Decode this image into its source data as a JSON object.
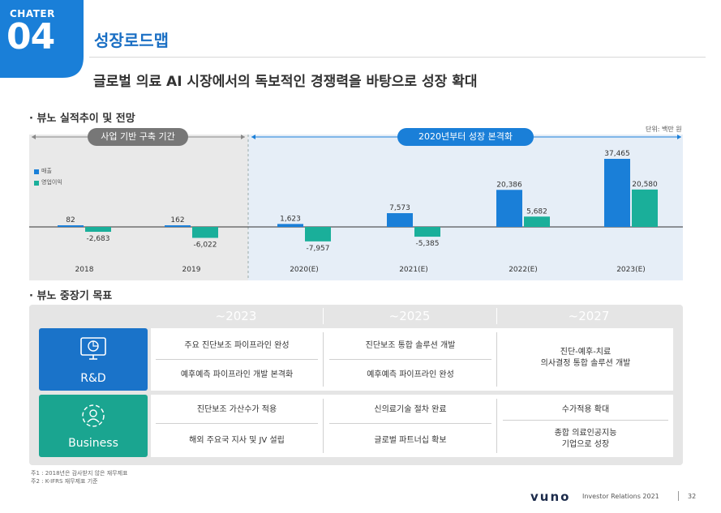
{
  "header": {
    "chapter_label": "CHATER",
    "chapter_number": "04",
    "title": "성장로드맵",
    "subtitle": "글로벌 의료 AI 시장에서의 독보적인 경쟁력을 바탕으로 성장 확대",
    "accent_color": "#1a7fd8"
  },
  "performance": {
    "section_title": "뷰노 실적추이 및 전망",
    "unit": "단위: 백만 원",
    "period_left": "사업 기반 구축 기간",
    "period_right": "2020년부터 성장 본격화"
  },
  "chart_data": {
    "type": "bar",
    "categories": [
      "2018",
      "2019",
      "2020(E)",
      "2021(E)",
      "2022(E)",
      "2023(E)"
    ],
    "series": [
      {
        "name": "매출",
        "color": "#1a7fd8",
        "values": [
          82,
          162,
          1623,
          7573,
          20386,
          37465
        ],
        "labels": [
          "82",
          "162",
          "1,623",
          "7,573",
          "20,386",
          "37,465"
        ]
      },
      {
        "name": "영업이익",
        "color": "#1aaf9a",
        "values": [
          -2683,
          -6022,
          -7957,
          -5385,
          5682,
          20580
        ],
        "labels": [
          "-2,683",
          "-6,022",
          "-7,957",
          "-5,385",
          "5,682",
          "20,580"
        ]
      }
    ],
    "ylim": [
      -9500,
      40000
    ]
  },
  "goals": {
    "section_title": "뷰노 중장기 목표",
    "years": [
      "~2023",
      "~2025",
      "~2027"
    ],
    "rows": [
      {
        "category": "R&D",
        "icon": "monitor-icon",
        "color": "#1a73c9",
        "cells": [
          [
            "주요 진단보조 파이프라인 완성",
            "예후예측 파이프라인 개발 본격화"
          ],
          [
            "진단보조 통합 솔루션 개발",
            "예후예측 파이프라인 완성"
          ],
          [
            "진단-예후-치료",
            "의사결정 통합 솔루션 개발"
          ]
        ]
      },
      {
        "category": "Business",
        "icon": "network-icon",
        "color": "#1aa590",
        "cells": [
          [
            "진단보조 가산수가 적용",
            "해외 주요국 지사 및 JV 설립"
          ],
          [
            "신의료기술 절차 완료",
            "글로벌 파트너십 확보"
          ],
          [
            "수가적용 확대",
            "종합 의료인공지능",
            "기업으로 성장"
          ]
        ]
      }
    ]
  },
  "footnotes": [
    "주1 : 2018년은 감사받지 않은 재무제표",
    "주2 : K-IFRS 재무제표 기준"
  ],
  "footer": {
    "logo": "vuno",
    "label": "Investor Relations 2021",
    "page": "32"
  }
}
